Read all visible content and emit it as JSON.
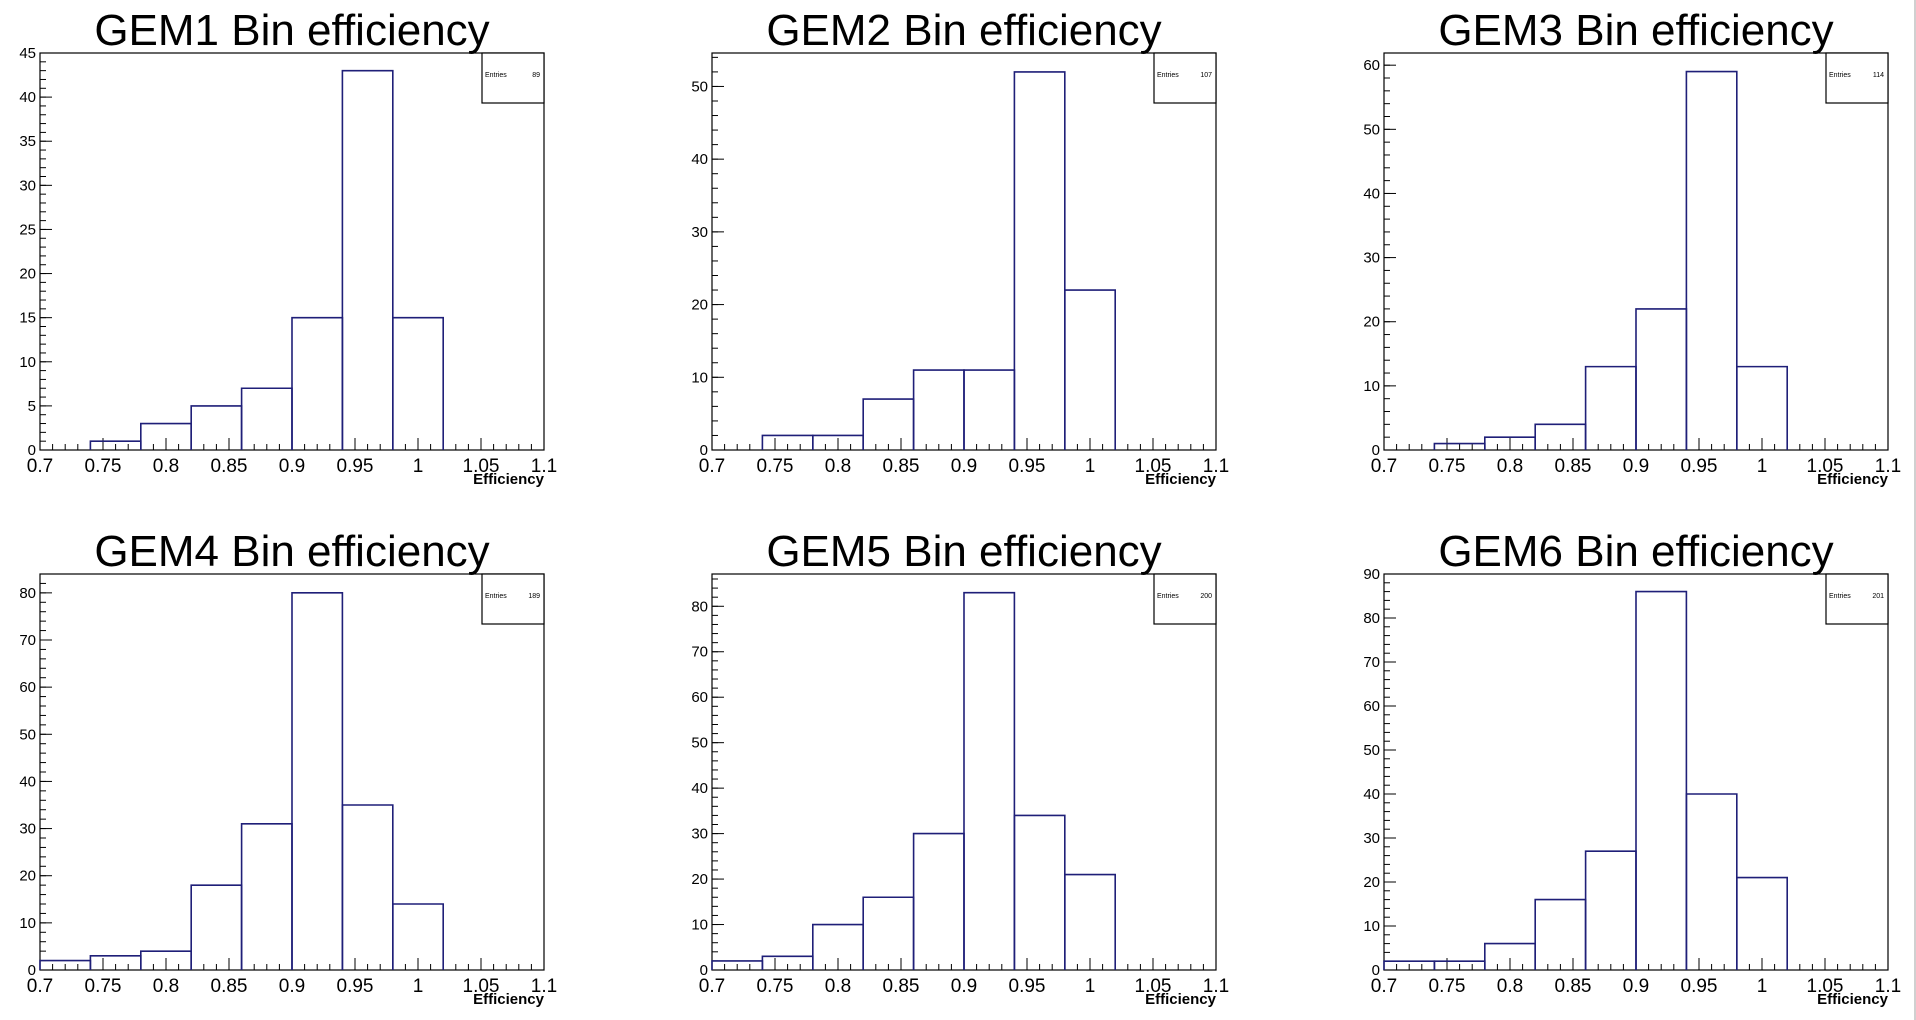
{
  "chart_data": [
    {
      "type": "bar",
      "title": "GEM1 Bin efficiency",
      "xlabel": "Efficiency",
      "ylabel": "",
      "stats": {
        "label": "Entries",
        "value": "89"
      },
      "series_color": "#1f1f78",
      "xlim": [
        0.7,
        1.1
      ],
      "ylim": [
        0,
        45
      ],
      "xticks": [
        0.7,
        0.75,
        0.8,
        0.85,
        0.9,
        0.95,
        1,
        1.05,
        1.1
      ],
      "xtick_labels": [
        "0.7",
        "0.75",
        "0.8",
        "0.85",
        "0.9",
        "0.95",
        "1",
        "1.05",
        "1.1"
      ],
      "yticks": [
        0,
        5,
        10,
        15,
        20,
        25,
        30,
        35,
        40,
        45
      ],
      "ytick_labels": [
        "0",
        "5",
        "10",
        "15",
        "20",
        "25",
        "30",
        "35",
        "40",
        "45"
      ],
      "bin_edges": [
        0.7,
        0.74,
        0.78,
        0.82,
        0.86,
        0.9,
        0.94,
        0.98,
        1.02,
        1.06,
        1.1
      ],
      "values": [
        0,
        1,
        3,
        5,
        7,
        15,
        43,
        15,
        0,
        0
      ]
    },
    {
      "type": "bar",
      "title": "GEM2 Bin efficiency",
      "xlabel": "Efficiency",
      "ylabel": "",
      "stats": {
        "label": "Entries",
        "value": "107"
      },
      "series_color": "#1f1f78",
      "xlim": [
        0.7,
        1.1
      ],
      "ylim": [
        0,
        54.6
      ],
      "xticks": [
        0.7,
        0.75,
        0.8,
        0.85,
        0.9,
        0.95,
        1,
        1.05,
        1.1
      ],
      "xtick_labels": [
        "0.7",
        "0.75",
        "0.8",
        "0.85",
        "0.9",
        "0.95",
        "1",
        "1.05",
        "1.1"
      ],
      "yticks": [
        0,
        10,
        20,
        30,
        40,
        50
      ],
      "ytick_labels": [
        "0",
        "10",
        "20",
        "30",
        "40",
        "50"
      ],
      "bin_edges": [
        0.7,
        0.74,
        0.78,
        0.82,
        0.86,
        0.9,
        0.94,
        0.98,
        1.02,
        1.06,
        1.1
      ],
      "values": [
        0,
        2,
        2,
        7,
        11,
        11,
        52,
        22,
        0,
        0
      ]
    },
    {
      "type": "bar",
      "title": "GEM3 Bin efficiency",
      "xlabel": "Efficiency",
      "ylabel": "",
      "stats": {
        "label": "Entries",
        "value": "114"
      },
      "series_color": "#1f1f78",
      "xlim": [
        0.7,
        1.1
      ],
      "ylim": [
        0,
        61.9
      ],
      "xticks": [
        0.7,
        0.75,
        0.8,
        0.85,
        0.9,
        0.95,
        1,
        1.05,
        1.1
      ],
      "xtick_labels": [
        "0.7",
        "0.75",
        "0.8",
        "0.85",
        "0.9",
        "0.95",
        "1",
        "1.05",
        "1.1"
      ],
      "yticks": [
        0,
        10,
        20,
        30,
        40,
        50,
        60
      ],
      "ytick_labels": [
        "0",
        "10",
        "20",
        "30",
        "40",
        "50",
        "60"
      ],
      "bin_edges": [
        0.7,
        0.74,
        0.78,
        0.82,
        0.86,
        0.9,
        0.94,
        0.98,
        1.02,
        1.06,
        1.1
      ],
      "values": [
        0,
        1,
        2,
        4,
        13,
        22,
        59,
        13,
        0,
        0
      ]
    },
    {
      "type": "bar",
      "title": "GEM4 Bin efficiency",
      "xlabel": "Efficiency",
      "ylabel": "",
      "stats": {
        "label": "Entries",
        "value": "189"
      },
      "series_color": "#1f1f78",
      "xlim": [
        0.7,
        1.1
      ],
      "ylim": [
        0,
        84
      ],
      "xticks": [
        0.7,
        0.75,
        0.8,
        0.85,
        0.9,
        0.95,
        1,
        1.05,
        1.1
      ],
      "xtick_labels": [
        "0.7",
        "0.75",
        "0.8",
        "0.85",
        "0.9",
        "0.95",
        "1",
        "1.05",
        "1.1"
      ],
      "yticks": [
        0,
        10,
        20,
        30,
        40,
        50,
        60,
        70,
        80
      ],
      "ytick_labels": [
        "0",
        "10",
        "20",
        "30",
        "40",
        "50",
        "60",
        "70",
        "80"
      ],
      "bin_edges": [
        0.7,
        0.74,
        0.78,
        0.82,
        0.86,
        0.9,
        0.94,
        0.98,
        1.02,
        1.06,
        1.1
      ],
      "values": [
        2,
        3,
        4,
        18,
        31,
        80,
        35,
        14,
        0,
        0
      ]
    },
    {
      "type": "bar",
      "title": "GEM5 Bin efficiency",
      "xlabel": "Efficiency",
      "ylabel": "",
      "stats": {
        "label": "Entries",
        "value": "200"
      },
      "series_color": "#1f1f78",
      "xlim": [
        0.7,
        1.1
      ],
      "ylim": [
        0,
        87.1
      ],
      "xticks": [
        0.7,
        0.75,
        0.8,
        0.85,
        0.9,
        0.95,
        1,
        1.05,
        1.1
      ],
      "xtick_labels": [
        "0.7",
        "0.75",
        "0.8",
        "0.85",
        "0.9",
        "0.95",
        "1",
        "1.05",
        "1.1"
      ],
      "yticks": [
        0,
        10,
        20,
        30,
        40,
        50,
        60,
        70,
        80
      ],
      "ytick_labels": [
        "0",
        "10",
        "20",
        "30",
        "40",
        "50",
        "60",
        "70",
        "80"
      ],
      "bin_edges": [
        0.7,
        0.74,
        0.78,
        0.82,
        0.86,
        0.9,
        0.94,
        0.98,
        1.02,
        1.06,
        1.1
      ],
      "values": [
        2,
        3,
        10,
        16,
        30,
        83,
        34,
        21,
        0,
        0
      ]
    },
    {
      "type": "bar",
      "title": "GEM6 Bin efficiency",
      "xlabel": "Efficiency",
      "ylabel": "",
      "stats": {
        "label": "Entries",
        "value": "201"
      },
      "series_color": "#1f1f78",
      "xlim": [
        0.7,
        1.1
      ],
      "ylim": [
        0,
        90
      ],
      "xticks": [
        0.7,
        0.75,
        0.8,
        0.85,
        0.9,
        0.95,
        1,
        1.05,
        1.1
      ],
      "xtick_labels": [
        "0.7",
        "0.75",
        "0.8",
        "0.85",
        "0.9",
        "0.95",
        "1",
        "1.05",
        "1.1"
      ],
      "yticks": [
        0,
        10,
        20,
        30,
        40,
        50,
        60,
        70,
        80,
        90
      ],
      "ytick_labels": [
        "0",
        "10",
        "20",
        "30",
        "40",
        "50",
        "60",
        "70",
        "80",
        "90"
      ],
      "bin_edges": [
        0.7,
        0.74,
        0.78,
        0.82,
        0.86,
        0.9,
        0.94,
        0.98,
        1.02,
        1.06,
        1.1
      ],
      "values": [
        2,
        2,
        6,
        16,
        27,
        86,
        40,
        21,
        0,
        0
      ]
    }
  ]
}
